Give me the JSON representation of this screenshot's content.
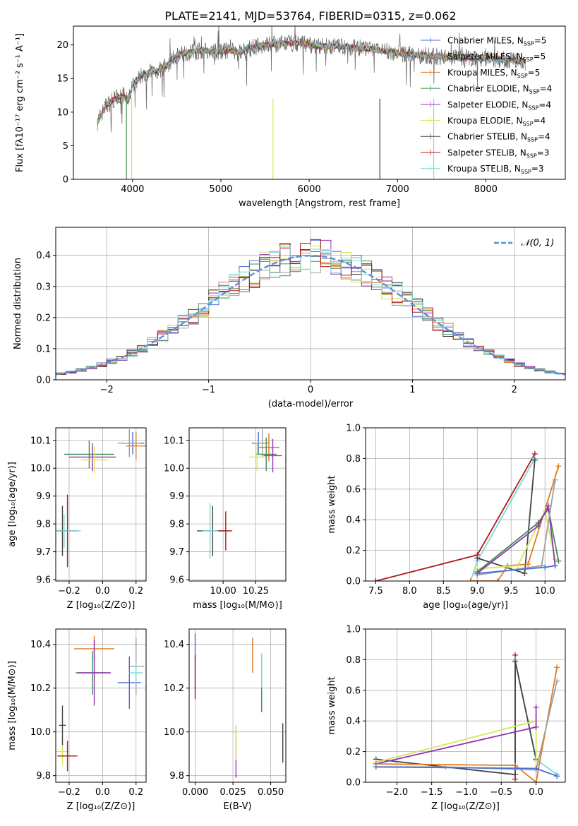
{
  "title": "PLATE=2141, MJD=53764, FIBERID=0315, z=0.062",
  "series_styles": [
    {
      "name": "Chabrier MILES",
      "nssp": "5",
      "color": "#4a6fd6"
    },
    {
      "name": "Salpeter MILES",
      "nssp": "5",
      "color": "#a0a0a0"
    },
    {
      "name": "Kroupa MILES",
      "nssp": "5",
      "color": "#e07b25"
    },
    {
      "name": "Chabrier ELODIE",
      "nssp": "4",
      "color": "#3e8e4e"
    },
    {
      "name": "Salpeter ELODIE",
      "nssp": "4",
      "color": "#9433b5"
    },
    {
      "name": "Kroupa ELODIE",
      "nssp": "4",
      "color": "#d4e85a"
    },
    {
      "name": "Chabrier STELIB",
      "nssp": "4",
      "color": "#444444"
    },
    {
      "name": "Salpeter STELIB",
      "nssp": "3",
      "color": "#b01818"
    },
    {
      "name": "Kroupa STELIB",
      "nssp": "3",
      "color": "#7fd8d8"
    }
  ],
  "chart_data": [
    {
      "id": "spectrum",
      "type": "line",
      "xlabel": "wavelength [Angstrom, rest frame]",
      "ylabel": "Flux [fλ10⁻¹⁷ erg cm⁻² s⁻¹ A⁻¹]",
      "xlim": [
        3330,
        8900
      ],
      "ylim": [
        0,
        22.8
      ],
      "xticks": [
        4000,
        5000,
        6000,
        7000,
        8000
      ],
      "yticks": [
        0,
        5,
        10,
        15,
        20
      ],
      "continuum": [
        [
          3600,
          8.5
        ],
        [
          3700,
          11
        ],
        [
          3800,
          12
        ],
        [
          3900,
          12.5
        ],
        [
          3950,
          11.5
        ],
        [
          4000,
          14
        ],
        [
          4100,
          15.5
        ],
        [
          4200,
          16
        ],
        [
          4300,
          16.2
        ],
        [
          4400,
          17
        ],
        [
          4500,
          18.5
        ],
        [
          4600,
          18.8
        ],
        [
          4700,
          19
        ],
        [
          4800,
          19.2
        ],
        [
          4900,
          19
        ],
        [
          5000,
          19
        ],
        [
          5100,
          19.2
        ],
        [
          5200,
          18.8
        ],
        [
          5300,
          19.5
        ],
        [
          5500,
          20
        ],
        [
          5700,
          20.2
        ],
        [
          5900,
          20.3
        ],
        [
          6100,
          19.8
        ],
        [
          6300,
          19.8
        ],
        [
          6500,
          19.6
        ],
        [
          6700,
          19.4
        ],
        [
          6900,
          19
        ],
        [
          7100,
          18.6
        ],
        [
          7300,
          18.4
        ],
        [
          7500,
          18.3
        ],
        [
          7700,
          18.1
        ],
        [
          8000,
          18
        ],
        [
          8200,
          17.8
        ],
        [
          8400,
          17.6
        ],
        [
          8450,
          17.5
        ]
      ]
    },
    {
      "id": "residuals",
      "type": "step-histogram",
      "xlabel": "(data-model)/error",
      "ylabel": "Normed distribution",
      "xlim": [
        -2.5,
        2.5
      ],
      "ylim": [
        0,
        0.49
      ],
      "xticks": [
        -2,
        -1,
        0,
        1,
        2
      ],
      "yticks": [
        0,
        0.1,
        0.2,
        0.3,
        0.4
      ],
      "legend": "𝒩(0, 1)",
      "bin_width": 0.1
    },
    {
      "id": "age_vs_Z",
      "type": "errorbar",
      "xlabel": "Z [log₁₀(Z/Z⊙)]",
      "ylabel": "age  [log₁₀(age/yr)]",
      "xlim": [
        -0.28,
        0.26
      ],
      "ylim": [
        9.595,
        10.145
      ],
      "xticks": [
        -0.2,
        0,
        0.2
      ],
      "yticks": [
        9.6,
        9.7,
        9.8,
        9.9,
        10.0,
        10.1
      ],
      "points": [
        [
          0.18,
          10.09,
          0.07,
          0.04
        ],
        [
          0.16,
          10.09,
          0.07,
          0.05
        ],
        [
          0.2,
          10.08,
          0.06,
          0.05
        ],
        [
          -0.08,
          10.05,
          0.15,
          0.05
        ],
        [
          -0.06,
          10.04,
          0.14,
          0.05
        ],
        [
          -0.05,
          10.03,
          0.08,
          0.05
        ],
        [
          -0.24,
          9.775,
          0.04,
          0.09
        ],
        [
          -0.21,
          9.775,
          0.06,
          0.13
        ],
        [
          -0.23,
          9.775,
          0.1,
          0.06
        ]
      ]
    },
    {
      "id": "age_vs_mass",
      "type": "errorbar",
      "xlabel": "mass [log₁₀(M/M⊙)]",
      "ylabel": "",
      "xlim": [
        9.74,
        10.48
      ],
      "ylim": [
        9.595,
        10.145
      ],
      "xticks": [
        10.0,
        10.25
      ],
      "yticks": [
        9.6,
        9.7,
        9.8,
        9.9,
        10.0,
        10.1
      ],
      "points": [
        [
          10.27,
          10.09,
          0.05,
          0.04
        ],
        [
          10.3,
          10.09,
          0.06,
          0.05
        ],
        [
          10.35,
          10.075,
          0.08,
          0.05
        ],
        [
          10.33,
          10.05,
          0.08,
          0.06
        ],
        [
          10.38,
          10.045,
          0.07,
          0.06
        ],
        [
          10.26,
          10.04,
          0.06,
          0.05
        ],
        [
          9.92,
          9.775,
          0.12,
          0.09
        ],
        [
          10.02,
          9.775,
          0.05,
          0.07
        ],
        [
          9.9,
          9.775,
          0.06,
          0.1
        ]
      ]
    },
    {
      "id": "weight_vs_age",
      "type": "line",
      "xlabel": "age  [log₁₀(age/yr)]",
      "ylabel": "mass weight",
      "xlim": [
        7.35,
        10.3
      ],
      "ylim": [
        0,
        1.0
      ],
      "xticks": [
        7.5,
        8.0,
        8.5,
        9.0,
        9.5,
        10.0
      ],
      "yticks": [
        0,
        0.2,
        0.4,
        0.6,
        0.8,
        1.0
      ]
    },
    {
      "id": "mass_vs_Z",
      "type": "errorbar",
      "xlabel": "Z [log₁₀(Z/Z⊙)]",
      "ylabel": "mass [log₁₀(M/M⊙)]",
      "xlim": [
        -0.28,
        0.26
      ],
      "ylim": [
        9.77,
        10.47
      ],
      "xticks": [
        -0.2,
        0,
        0.2
      ],
      "yticks": [
        9.8,
        10.0,
        10.2,
        10.4
      ],
      "points": [
        [
          0.16,
          10.225,
          0.07,
          0.12
        ],
        [
          0.2,
          10.3,
          0.05,
          0.13
        ],
        [
          -0.05,
          10.38,
          0.12,
          0.06
        ],
        [
          -0.06,
          10.27,
          0.1,
          0.1
        ],
        [
          -0.05,
          10.27,
          0.1,
          0.15
        ],
        [
          -0.24,
          9.91,
          0.04,
          0.06
        ],
        [
          -0.24,
          10.03,
          0.02,
          0.09
        ],
        [
          -0.21,
          9.89,
          0.06,
          0.07
        ],
        [
          0.2,
          10.27,
          0.04,
          0.05
        ]
      ]
    },
    {
      "id": "mass_vs_EBV",
      "type": "errorbar",
      "xlabel": "E(B-V)",
      "ylabel": "",
      "xlim": [
        -0.004,
        0.06
      ],
      "ylim": [
        9.77,
        10.47
      ],
      "xticks": [
        0.0,
        0.025,
        0.05
      ],
      "yticks": [
        9.8,
        10.0,
        10.2,
        10.4
      ],
      "points": [
        [
          0.0,
          10.39,
          0,
          0.06
        ],
        [
          0.0,
          10.27,
          0,
          0.08
        ],
        [
          0.038,
          10.35,
          0,
          0.08
        ],
        [
          0.044,
          10.22,
          0,
          0.13
        ],
        [
          0.027,
          9.91,
          0,
          0.12
        ],
        [
          0.027,
          9.95,
          0,
          0.08
        ],
        [
          0.058,
          9.95,
          0,
          0.09
        ],
        [
          0.0,
          10.25,
          0,
          0.1
        ],
        [
          0.044,
          10.28,
          0,
          0.08
        ]
      ]
    },
    {
      "id": "weight_vs_Z",
      "type": "line",
      "xlabel": "Z [log₁₀(Z/Z⊙)]",
      "ylabel": "mass weight",
      "xlim": [
        -2.45,
        0.42
      ],
      "ylim": [
        0,
        1.0
      ],
      "xticks": [
        -2.0,
        -1.5,
        -1.0,
        -0.5,
        0.0
      ],
      "yticks": [
        0,
        0.2,
        0.4,
        0.6,
        0.8,
        1.0
      ]
    }
  ]
}
